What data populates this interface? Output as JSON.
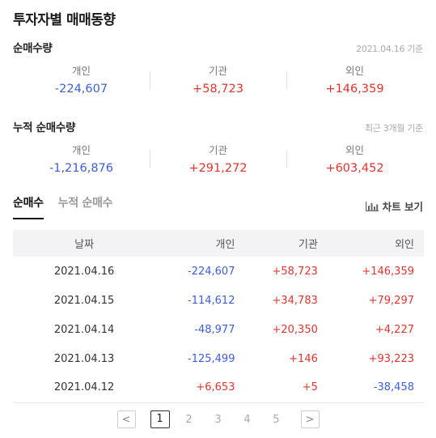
{
  "title": "투자자별 매매동향",
  "net": {
    "title": "순매수량",
    "date": "2021.04.16 기준",
    "labels": {
      "individual": "개인",
      "institution": "기관",
      "foreign": "외인"
    },
    "values": {
      "individual": "-224,607",
      "institution": "+58,723",
      "foreign": "+146,359"
    }
  },
  "cumulative": {
    "title": "누적 순매수량",
    "note": "최근 3개월 기준",
    "labels": {
      "individual": "개인",
      "institution": "기관",
      "foreign": "외인"
    },
    "values": {
      "individual": "-1,216,876",
      "institution": "+291,272",
      "foreign": "+603,452"
    }
  },
  "tabs": [
    "순매수",
    "누적 순매수"
  ],
  "chart_view": "차트 보기",
  "table": {
    "headers": {
      "date": "날짜",
      "individual": "개인",
      "institution": "기관",
      "foreign": "외인"
    },
    "rows": [
      {
        "date": "2021.04.16",
        "individual": "-224,607",
        "institution": "+58,723",
        "foreign": "+146,359"
      },
      {
        "date": "2021.04.15",
        "individual": "-114,612",
        "institution": "+34,783",
        "foreign": "+79,297"
      },
      {
        "date": "2021.04.14",
        "individual": "-48,977",
        "institution": "+20,350",
        "foreign": "+4,227"
      },
      {
        "date": "2021.04.13",
        "individual": "-125,499",
        "institution": "+146",
        "foreign": "+93,223"
      },
      {
        "date": "2021.04.12",
        "individual": "+6,653",
        "institution": "+5",
        "foreign": "-38,458"
      }
    ]
  },
  "pagination": {
    "prev": "<",
    "next": ">",
    "pages": [
      "1",
      "2",
      "3",
      "4",
      "5"
    ],
    "current": "1"
  },
  "colors": {
    "positive": "#e0352d",
    "negative": "#3d5fdb"
  }
}
